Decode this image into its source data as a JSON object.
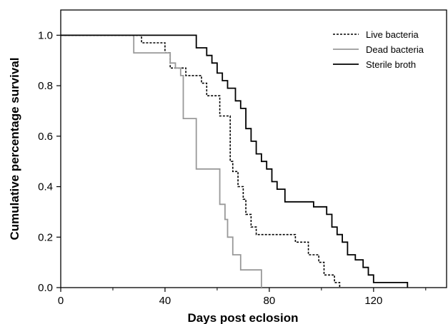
{
  "chart_data": {
    "type": "line",
    "title": "",
    "xlabel": "Days post eclosion",
    "ylabel": "Cumulative percentage survival",
    "xlim": [
      0,
      148
    ],
    "ylim": [
      0,
      1.1
    ],
    "x_ticks": [
      0,
      40,
      80,
      120
    ],
    "x_minor_ticks": [
      20,
      60,
      100,
      140
    ],
    "y_ticks": [
      0.0,
      0.2,
      0.4,
      0.6,
      0.8,
      1.0
    ],
    "y_tick_labels": [
      "0.0",
      "0.2",
      "0.4",
      "0.6",
      "0.8",
      "1.0"
    ],
    "legend_position": "top-right",
    "grid": false,
    "series": [
      {
        "name": "Live bacteria",
        "style": "dotted",
        "color": "#000000",
        "points": [
          [
            0,
            1.0
          ],
          [
            31,
            1.0
          ],
          [
            31,
            0.97
          ],
          [
            40,
            0.97
          ],
          [
            40,
            0.93
          ],
          [
            42,
            0.93
          ],
          [
            42,
            0.87
          ],
          [
            48,
            0.87
          ],
          [
            48,
            0.84
          ],
          [
            54,
            0.84
          ],
          [
            54,
            0.81
          ],
          [
            56,
            0.81
          ],
          [
            56,
            0.76
          ],
          [
            61,
            0.76
          ],
          [
            61,
            0.68
          ],
          [
            65,
            0.68
          ],
          [
            65,
            0.5
          ],
          [
            66,
            0.5
          ],
          [
            66,
            0.46
          ],
          [
            68,
            0.46
          ],
          [
            68,
            0.4
          ],
          [
            70,
            0.4
          ],
          [
            70,
            0.35
          ],
          [
            71,
            0.35
          ],
          [
            71,
            0.29
          ],
          [
            73,
            0.29
          ],
          [
            73,
            0.24
          ],
          [
            75,
            0.24
          ],
          [
            75,
            0.21
          ],
          [
            90,
            0.21
          ],
          [
            90,
            0.18
          ],
          [
            95,
            0.18
          ],
          [
            95,
            0.13
          ],
          [
            99,
            0.13
          ],
          [
            99,
            0.1
          ],
          [
            101,
            0.1
          ],
          [
            101,
            0.05
          ],
          [
            105,
            0.05
          ],
          [
            105,
            0.02
          ],
          [
            107,
            0.02
          ],
          [
            107,
            0.0
          ]
        ]
      },
      {
        "name": "Dead bacteria",
        "style": "solid",
        "color": "#999999",
        "points": [
          [
            0,
            1.0
          ],
          [
            28,
            1.0
          ],
          [
            28,
            0.93
          ],
          [
            35,
            0.93
          ],
          [
            35,
            0.93
          ],
          [
            42,
            0.93
          ],
          [
            42,
            0.89
          ],
          [
            44,
            0.89
          ],
          [
            44,
            0.87
          ],
          [
            46,
            0.87
          ],
          [
            46,
            0.84
          ],
          [
            47,
            0.84
          ],
          [
            47,
            0.67
          ],
          [
            52,
            0.67
          ],
          [
            52,
            0.47
          ],
          [
            61,
            0.47
          ],
          [
            61,
            0.33
          ],
          [
            63,
            0.33
          ],
          [
            63,
            0.27
          ],
          [
            64,
            0.27
          ],
          [
            64,
            0.2
          ],
          [
            66,
            0.2
          ],
          [
            66,
            0.13
          ],
          [
            69,
            0.13
          ],
          [
            69,
            0.07
          ],
          [
            77,
            0.07
          ],
          [
            77,
            0.0
          ]
        ]
      },
      {
        "name": "Sterile broth",
        "style": "solid",
        "color": "#000000",
        "points": [
          [
            0,
            1.0
          ],
          [
            52,
            1.0
          ],
          [
            52,
            0.95
          ],
          [
            56,
            0.95
          ],
          [
            56,
            0.92
          ],
          [
            58,
            0.92
          ],
          [
            58,
            0.89
          ],
          [
            60,
            0.89
          ],
          [
            60,
            0.85
          ],
          [
            62,
            0.85
          ],
          [
            62,
            0.82
          ],
          [
            64,
            0.82
          ],
          [
            64,
            0.79
          ],
          [
            67,
            0.79
          ],
          [
            67,
            0.74
          ],
          [
            69,
            0.74
          ],
          [
            69,
            0.71
          ],
          [
            71,
            0.71
          ],
          [
            71,
            0.63
          ],
          [
            73,
            0.63
          ],
          [
            73,
            0.58
          ],
          [
            75,
            0.58
          ],
          [
            75,
            0.53
          ],
          [
            77,
            0.53
          ],
          [
            77,
            0.5
          ],
          [
            79,
            0.5
          ],
          [
            79,
            0.47
          ],
          [
            81,
            0.47
          ],
          [
            81,
            0.42
          ],
          [
            83,
            0.42
          ],
          [
            83,
            0.39
          ],
          [
            86,
            0.39
          ],
          [
            86,
            0.34
          ],
          [
            97,
            0.34
          ],
          [
            97,
            0.32
          ],
          [
            102,
            0.32
          ],
          [
            102,
            0.29
          ],
          [
            104,
            0.29
          ],
          [
            104,
            0.24
          ],
          [
            106,
            0.24
          ],
          [
            106,
            0.21
          ],
          [
            108,
            0.21
          ],
          [
            108,
            0.18
          ],
          [
            110,
            0.18
          ],
          [
            110,
            0.13
          ],
          [
            113,
            0.13
          ],
          [
            113,
            0.11
          ],
          [
            116,
            0.11
          ],
          [
            116,
            0.08
          ],
          [
            118,
            0.08
          ],
          [
            118,
            0.05
          ],
          [
            120,
            0.05
          ],
          [
            120,
            0.02
          ],
          [
            133,
            0.02
          ],
          [
            133,
            0.0
          ]
        ]
      }
    ]
  }
}
